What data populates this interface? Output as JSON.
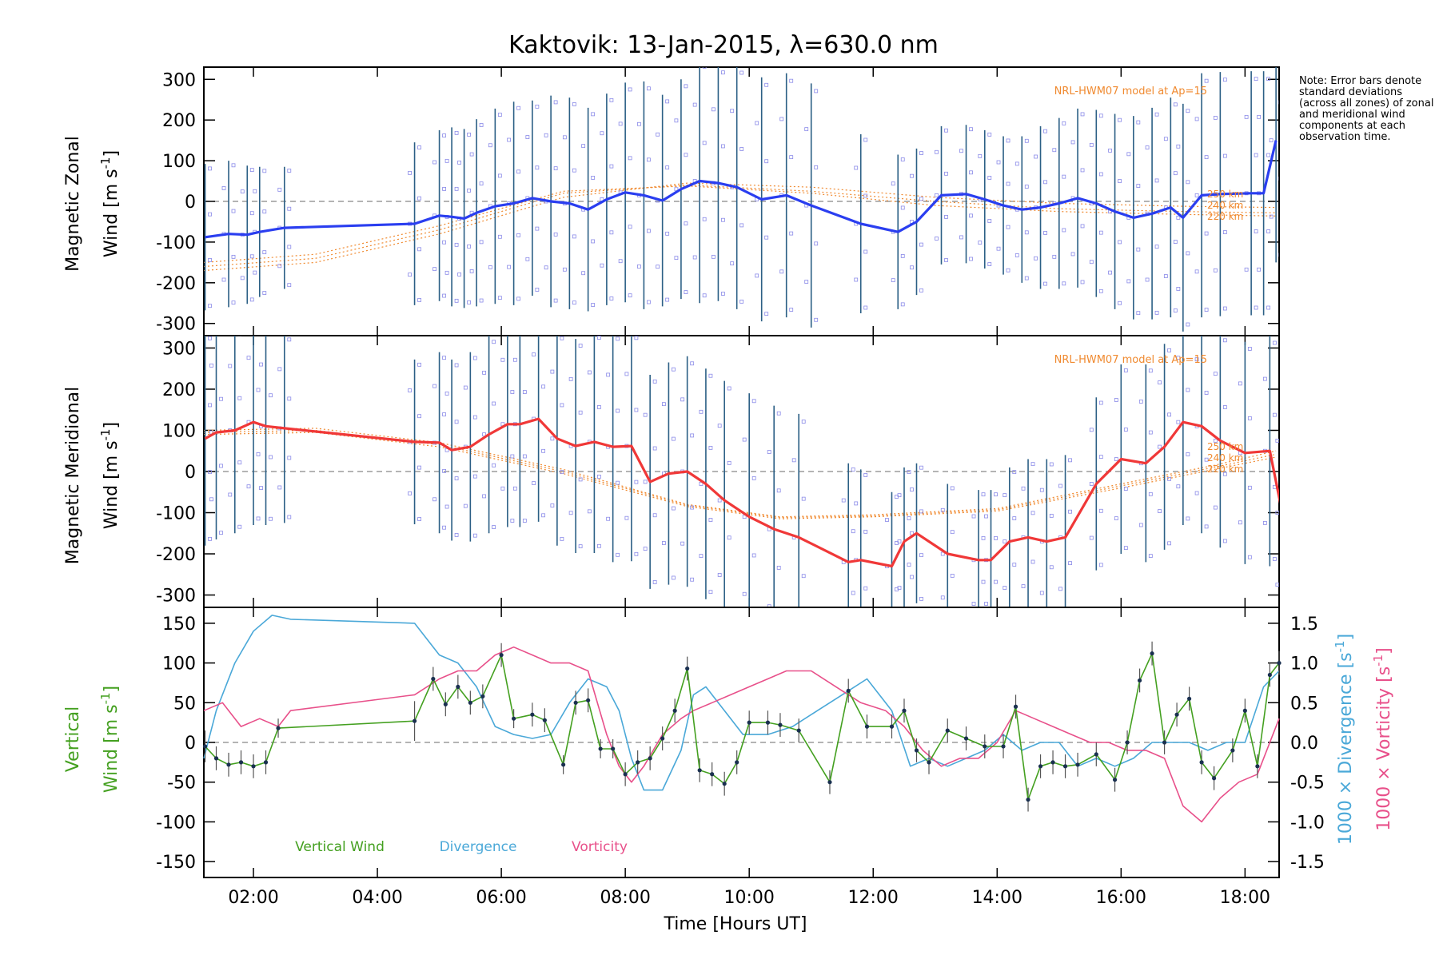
{
  "chart_data": [
    {
      "type": "line",
      "panel": "zonal",
      "title": "Kaktovik: 13-Jan-2015, λ=630.0 nm",
      "ylabel_line1": "Magnetic Zonal",
      "ylabel_line2": "Wind [m s",
      "ylabel_sup": "-1",
      "ylabel_close": "]",
      "ylim": [
        -330,
        330
      ],
      "yticks": [
        -300,
        -200,
        -100,
        0,
        100,
        200,
        300
      ],
      "model_label": "NRL-HWM07 model at Ap=15",
      "model_alt_labels": [
        "250 km",
        "240 km",
        "220 km"
      ],
      "x": [
        1.22,
        1.6,
        1.9,
        2.1,
        2.5,
        4.6,
        5.0,
        5.2,
        5.4,
        5.6,
        5.9,
        6.2,
        6.5,
        6.8,
        7.1,
        7.4,
        7.7,
        8.0,
        8.3,
        8.6,
        8.9,
        9.2,
        9.5,
        9.8,
        10.2,
        10.6,
        11.0,
        11.8,
        12.4,
        12.7,
        13.1,
        13.5,
        13.8,
        14.1,
        14.4,
        14.7,
        15.0,
        15.3,
        15.6,
        15.9,
        16.2,
        16.5,
        16.8,
        17.0,
        17.3,
        17.6,
        18.1,
        18.3,
        18.5
      ],
      "y": [
        -88,
        -80,
        -82,
        -75,
        -65,
        -55,
        -35,
        -38,
        -42,
        -28,
        -12,
        -5,
        8,
        0,
        -5,
        -20,
        5,
        22,
        15,
        2,
        30,
        50,
        45,
        35,
        5,
        15,
        -10,
        -55,
        -75,
        -50,
        15,
        18,
        5,
        -10,
        -20,
        -15,
        -5,
        8,
        -5,
        -25,
        -40,
        -30,
        -15,
        -40,
        15,
        18,
        20,
        20,
        150
      ],
      "err": [
        180,
        180,
        170,
        160,
        150,
        200,
        210,
        220,
        220,
        230,
        240,
        250,
        240,
        260,
        260,
        250,
        260,
        270,
        280,
        260,
        270,
        300,
        290,
        300,
        300,
        300,
        300,
        220,
        190,
        180,
        170,
        170,
        170,
        170,
        180,
        200,
        210,
        220,
        230,
        240,
        250,
        260,
        270,
        280,
        300,
        300,
        300,
        300,
        300
      ],
      "model_curves": [
        {
          "name": "250 km",
          "x": [
            1.2,
            3.0,
            5.0,
            7.0,
            9.0,
            11.0,
            13.0,
            15.0,
            17.0,
            18.5
          ],
          "y": [
            -170,
            -150,
            -80,
            10,
            45,
            35,
            10,
            -5,
            -12,
            -15
          ]
        },
        {
          "name": "240 km",
          "x": [
            1.2,
            3.0,
            5.0,
            7.0,
            9.0,
            11.0,
            13.0,
            15.0,
            17.0,
            18.5
          ],
          "y": [
            -160,
            -140,
            -70,
            20,
            40,
            25,
            0,
            -18,
            -25,
            -28
          ]
        },
        {
          "name": "220 km",
          "x": [
            1.2,
            3.0,
            5.0,
            7.0,
            9.0,
            11.0,
            13.0,
            15.0,
            17.0,
            18.5
          ],
          "y": [
            -150,
            -130,
            -60,
            25,
            38,
            20,
            -10,
            -25,
            -32,
            -36
          ]
        }
      ]
    },
    {
      "type": "line",
      "panel": "meridional",
      "ylabel_line1": "Magnetic Meridional",
      "ylabel_line2": "Wind [m s",
      "ylabel_sup": "-1",
      "ylabel_close": "]",
      "ylim": [
        -330,
        330
      ],
      "yticks": [
        -300,
        -200,
        -100,
        0,
        100,
        200,
        300
      ],
      "model_label": "NRL-HWM07 model at Ap=15",
      "model_alt_labels": [
        "250 km",
        "240 km",
        "220 km"
      ],
      "x": [
        1.22,
        1.4,
        1.7,
        2.0,
        2.2,
        2.5,
        4.6,
        5.0,
        5.2,
        5.5,
        5.8,
        6.1,
        6.3,
        6.6,
        6.9,
        7.2,
        7.5,
        7.8,
        8.1,
        8.4,
        8.7,
        9.0,
        9.3,
        9.6,
        10.0,
        10.4,
        10.8,
        11.6,
        11.8,
        12.3,
        12.5,
        12.7,
        13.2,
        13.7,
        13.9,
        14.2,
        14.5,
        14.8,
        15.1,
        15.6,
        16.0,
        16.4,
        16.7,
        17.0,
        17.3,
        17.6,
        18.0,
        18.4,
        18.6
      ],
      "y": [
        80,
        95,
        100,
        120,
        110,
        105,
        72,
        70,
        52,
        60,
        90,
        115,
        115,
        128,
        80,
        62,
        72,
        60,
        62,
        -25,
        -5,
        0,
        -30,
        -70,
        -110,
        -140,
        -160,
        -220,
        -215,
        -230,
        -170,
        -150,
        -200,
        -215,
        -215,
        -170,
        -160,
        -170,
        -160,
        -30,
        30,
        20,
        60,
        120,
        110,
        75,
        45,
        50,
        -100
      ],
      "err": [
        260,
        260,
        250,
        250,
        240,
        230,
        200,
        220,
        220,
        230,
        240,
        250,
        250,
        250,
        260,
        260,
        270,
        280,
        280,
        260,
        270,
        280,
        280,
        290,
        300,
        300,
        300,
        240,
        220,
        180,
        180,
        170,
        170,
        170,
        170,
        180,
        190,
        200,
        200,
        210,
        230,
        240,
        250,
        250,
        260,
        260,
        270,
        280,
        280
      ],
      "model_curves": [
        {
          "name": "250 km",
          "x": [
            1.2,
            3.0,
            5.0,
            7.0,
            9.0,
            10.5,
            12.0,
            14.0,
            16.0,
            17.5,
            18.5
          ],
          "y": [
            100,
            105,
            70,
            5,
            -80,
            -110,
            -105,
            -90,
            -30,
            15,
            50
          ]
        },
        {
          "name": "240 km",
          "x": [
            1.2,
            3.0,
            5.0,
            7.0,
            9.0,
            10.5,
            12.0,
            14.0,
            16.0,
            17.5,
            18.5
          ],
          "y": [
            95,
            100,
            65,
            0,
            -82,
            -112,
            -108,
            -93,
            -35,
            10,
            42
          ]
        },
        {
          "name": "220 km",
          "x": [
            1.2,
            3.0,
            5.0,
            7.0,
            9.0,
            10.5,
            12.0,
            14.0,
            16.0,
            17.5,
            18.5
          ],
          "y": [
            90,
            95,
            60,
            -5,
            -85,
            -115,
            -110,
            -96,
            -40,
            5,
            35
          ]
        }
      ]
    },
    {
      "type": "line",
      "panel": "vertical",
      "ylabel_line1": "Vertical",
      "ylabel_line2_a": "Wind ",
      "ylabel_line2_b": "[m s",
      "ylabel_sup": "-1",
      "ylabel_close": "]",
      "ylim": [
        -170,
        170
      ],
      "yticks": [
        -150,
        -100,
        -50,
        0,
        50,
        100,
        150
      ],
      "y2_divergence_label": "1000 × Divergence [s",
      "y2_vorticity_label": "1000 × Vorticity [s",
      "y2_sup": "-1",
      "y2_close": "]",
      "y2lim": [
        -1.7,
        1.7
      ],
      "y2ticks": [
        "-1.5",
        "-1.0",
        "-0.5",
        "0.0",
        "0.5",
        "1.0",
        "1.5"
      ],
      "xlabel": "Time [Hours UT]",
      "xlim": [
        1.2,
        18.55
      ],
      "xticks": [
        "02:00",
        "04:00",
        "06:00",
        "08:00",
        "10:00",
        "12:00",
        "14:00",
        "16:00",
        "18:00"
      ],
      "xtick_values": [
        2,
        4,
        6,
        8,
        10,
        12,
        14,
        16,
        18
      ],
      "legend": [
        "Vertical Wind",
        "Divergence",
        "Vorticity"
      ],
      "series": [
        {
          "name": "Vertical Wind",
          "color": "#44a020",
          "x": [
            1.22,
            1.4,
            1.6,
            1.8,
            2.0,
            2.2,
            2.4,
            4.6,
            4.9,
            5.1,
            5.3,
            5.5,
            5.7,
            6.0,
            6.2,
            6.5,
            6.7,
            7.0,
            7.2,
            7.4,
            7.6,
            7.8,
            8.0,
            8.2,
            8.4,
            8.6,
            8.8,
            9.0,
            9.2,
            9.4,
            9.6,
            9.8,
            10.0,
            10.3,
            10.5,
            10.8,
            11.3,
            11.6,
            11.9,
            12.3,
            12.5,
            12.7,
            12.9,
            13.2,
            13.5,
            13.8,
            14.1,
            14.3,
            14.5,
            14.7,
            14.9,
            15.1,
            15.3,
            15.6,
            15.9,
            16.1,
            16.3,
            16.5,
            16.7,
            16.9,
            17.1,
            17.3,
            17.5,
            17.8,
            18.0,
            18.2,
            18.4,
            18.55
          ],
          "y": [
            -5,
            -20,
            -28,
            -25,
            -30,
            -25,
            18,
            27,
            80,
            48,
            70,
            50,
            58,
            110,
            30,
            35,
            28,
            -28,
            50,
            53,
            -8,
            -8,
            -40,
            -25,
            -20,
            5,
            40,
            93,
            -35,
            -40,
            -52,
            -25,
            25,
            25,
            22,
            15,
            -50,
            65,
            20,
            20,
            40,
            -10,
            -25,
            15,
            5,
            -5,
            -5,
            45,
            -72,
            -30,
            -25,
            -30,
            -28,
            -15,
            -47,
            0,
            78,
            112,
            0,
            35,
            55,
            -25,
            -45,
            -10,
            40,
            -30,
            85,
            100
          ],
          "err": [
            20,
            15,
            15,
            15,
            15,
            15,
            12,
            25,
            15,
            15,
            15,
            15,
            15,
            15,
            12,
            15,
            15,
            12,
            15,
            15,
            12,
            12,
            15,
            15,
            15,
            15,
            15,
            15,
            15,
            15,
            15,
            15,
            15,
            15,
            15,
            15,
            15,
            15,
            15,
            15,
            15,
            15,
            15,
            15,
            15,
            15,
            15,
            15,
            15,
            15,
            15,
            15,
            15,
            15,
            15,
            15,
            15,
            15,
            15,
            15,
            15,
            15,
            15,
            15,
            15,
            15,
            15,
            15
          ]
        },
        {
          "name": "Divergence",
          "color": "#4aa8d8",
          "axis": "right",
          "x": [
            1.2,
            1.4,
            1.7,
            2.0,
            2.3,
            2.6,
            4.6,
            5.0,
            5.3,
            5.6,
            5.9,
            6.2,
            6.5,
            6.8,
            7.1,
            7.4,
            7.7,
            7.9,
            8.1,
            8.3,
            8.6,
            8.9,
            9.1,
            9.3,
            9.6,
            9.9,
            10.3,
            10.7,
            11.1,
            11.5,
            11.9,
            12.3,
            12.6,
            12.9,
            13.2,
            13.5,
            13.8,
            14.1,
            14.4,
            14.7,
            15.0,
            15.3,
            15.6,
            15.9,
            16.2,
            16.5,
            16.8,
            17.1,
            17.4,
            17.7,
            18.0,
            18.3,
            18.55
          ],
          "y": [
            -0.2,
            0.4,
            1.0,
            1.4,
            1.6,
            1.55,
            1.5,
            1.1,
            1.0,
            0.7,
            0.2,
            0.1,
            0.05,
            0.1,
            0.5,
            0.8,
            0.7,
            0.4,
            -0.2,
            -0.6,
            -0.6,
            -0.1,
            0.6,
            0.7,
            0.4,
            0.1,
            0.1,
            0.2,
            0.4,
            0.6,
            0.8,
            0.4,
            -0.3,
            -0.2,
            -0.3,
            -0.2,
            -0.1,
            0.1,
            -0.1,
            0.0,
            0.0,
            -0.3,
            -0.2,
            -0.3,
            -0.2,
            0.0,
            0.0,
            0.0,
            -0.1,
            0.0,
            0.0,
            0.7,
            0.9
          ]
        },
        {
          "name": "Vorticity",
          "color": "#e8508a",
          "axis": "right",
          "x": [
            1.2,
            1.5,
            1.8,
            2.1,
            2.4,
            2.6,
            4.6,
            5.0,
            5.3,
            5.6,
            5.9,
            6.2,
            6.5,
            6.8,
            7.1,
            7.4,
            7.7,
            7.9,
            8.1,
            8.3,
            8.6,
            8.9,
            9.1,
            9.4,
            9.7,
            10.0,
            10.3,
            10.6,
            11.0,
            11.4,
            11.8,
            12.2,
            12.5,
            12.8,
            13.1,
            13.4,
            13.7,
            14.0,
            14.3,
            14.6,
            14.9,
            15.2,
            15.5,
            15.8,
            16.1,
            16.4,
            16.7,
            17.0,
            17.3,
            17.6,
            17.9,
            18.2,
            18.55
          ],
          "y": [
            0.4,
            0.5,
            0.2,
            0.3,
            0.2,
            0.4,
            0.6,
            0.8,
            0.9,
            0.9,
            1.1,
            1.2,
            1.1,
            1.0,
            1.0,
            0.9,
            0.1,
            -0.3,
            -0.5,
            -0.3,
            0.1,
            0.3,
            0.4,
            0.5,
            0.6,
            0.7,
            0.8,
            0.9,
            0.9,
            0.7,
            0.5,
            0.4,
            0.2,
            -0.1,
            -0.3,
            -0.2,
            -0.2,
            0.0,
            0.4,
            0.3,
            0.2,
            0.1,
            0.0,
            0.0,
            -0.1,
            -0.1,
            -0.2,
            -0.8,
            -1.0,
            -0.7,
            -0.5,
            -0.4,
            0.3
          ]
        }
      ]
    }
  ],
  "note": "Note: Error bars denote standard deviations (across all zones) of zonal and meridional wind components at each observation time."
}
